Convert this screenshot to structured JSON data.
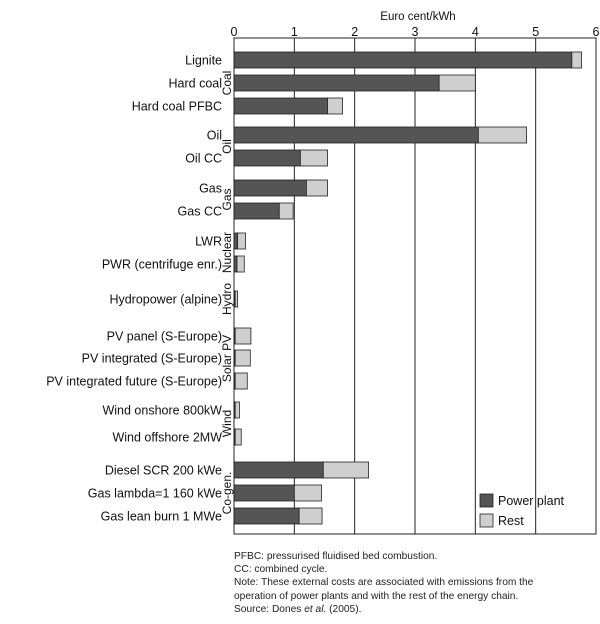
{
  "chart_data": {
    "type": "bar",
    "orientation": "horizontal",
    "stacked": true,
    "xlabel": "Euro cent/kWh",
    "xlim": [
      0,
      6
    ],
    "x_ticks": [
      "0",
      "1",
      "2",
      "3",
      "4",
      "5",
      "6"
    ],
    "x_axis_position": "top",
    "grid": "vertical",
    "legend_position": "bottom-right",
    "series": [
      {
        "name": "Power plant",
        "color": "#555555"
      },
      {
        "name": "Rest",
        "color": "#cfcfcf"
      }
    ],
    "groups": [
      {
        "label": "Coal",
        "rows": [
          {
            "label": "Lignite",
            "power_plant": 5.6,
            "rest": 0.16
          },
          {
            "label": "Hard coal",
            "power_plant": 3.4,
            "rest": 0.6
          },
          {
            "label": "Hard coal PFBC",
            "power_plant": 1.55,
            "rest": 0.25
          }
        ]
      },
      {
        "label": "Oil",
        "rows": [
          {
            "label": "Oil",
            "power_plant": 4.05,
            "rest": 0.8
          },
          {
            "label": "Oil CC",
            "power_plant": 1.1,
            "rest": 0.45
          }
        ]
      },
      {
        "label": "Gas",
        "rows": [
          {
            "label": "Gas",
            "power_plant": 1.2,
            "rest": 0.35
          },
          {
            "label": "Gas CC",
            "power_plant": 0.75,
            "rest": 0.23
          }
        ]
      },
      {
        "label": "Nuclear",
        "rows": [
          {
            "label": "LWR",
            "power_plant": 0.06,
            "rest": 0.13
          },
          {
            "label": "PWR (centrifuge enr.)",
            "power_plant": 0.05,
            "rest": 0.12
          }
        ]
      },
      {
        "label": "Hydro",
        "rows": [
          {
            "label": "Hydropower (alpine)",
            "power_plant": 0.02,
            "rest": 0.04
          }
        ]
      },
      {
        "label": "Solar PV",
        "rows": [
          {
            "label": "PV panel (S-Europe)",
            "power_plant": 0.02,
            "rest": 0.26
          },
          {
            "label": "PV integrated (S-Europe)",
            "power_plant": 0.02,
            "rest": 0.25
          },
          {
            "label": "PV integrated future (S-Europe)",
            "power_plant": 0.02,
            "rest": 0.2
          }
        ]
      },
      {
        "label": "Wind",
        "rows": [
          {
            "label": "Wind onshore 800kW",
            "power_plant": 0.02,
            "rest": 0.07
          },
          {
            "label": "Wind offshore 2MW",
            "power_plant": 0.02,
            "rest": 0.1
          }
        ]
      },
      {
        "label": "Co-gen.",
        "rows": [
          {
            "label": "Diesel SCR 200 kWe",
            "power_plant": 1.48,
            "rest": 0.75
          },
          {
            "label": "Gas lambda=1 160 kWe",
            "power_plant": 1.0,
            "rest": 0.45
          },
          {
            "label": "Gas lean burn 1 MWe",
            "power_plant": 1.08,
            "rest": 0.38
          }
        ]
      }
    ]
  },
  "notes": {
    "pfbc": "PFBC: pressurised fluidised bed combustion.",
    "cc": "CC: combined cycle.",
    "note_line1": "Note: These external costs are associated with emissions from the",
    "note_line2": "operation of power plants and with the rest of the energy chain.",
    "source_prefix": "Source: Dones ",
    "source_italic": "et al.",
    "source_suffix": " (2005)."
  }
}
